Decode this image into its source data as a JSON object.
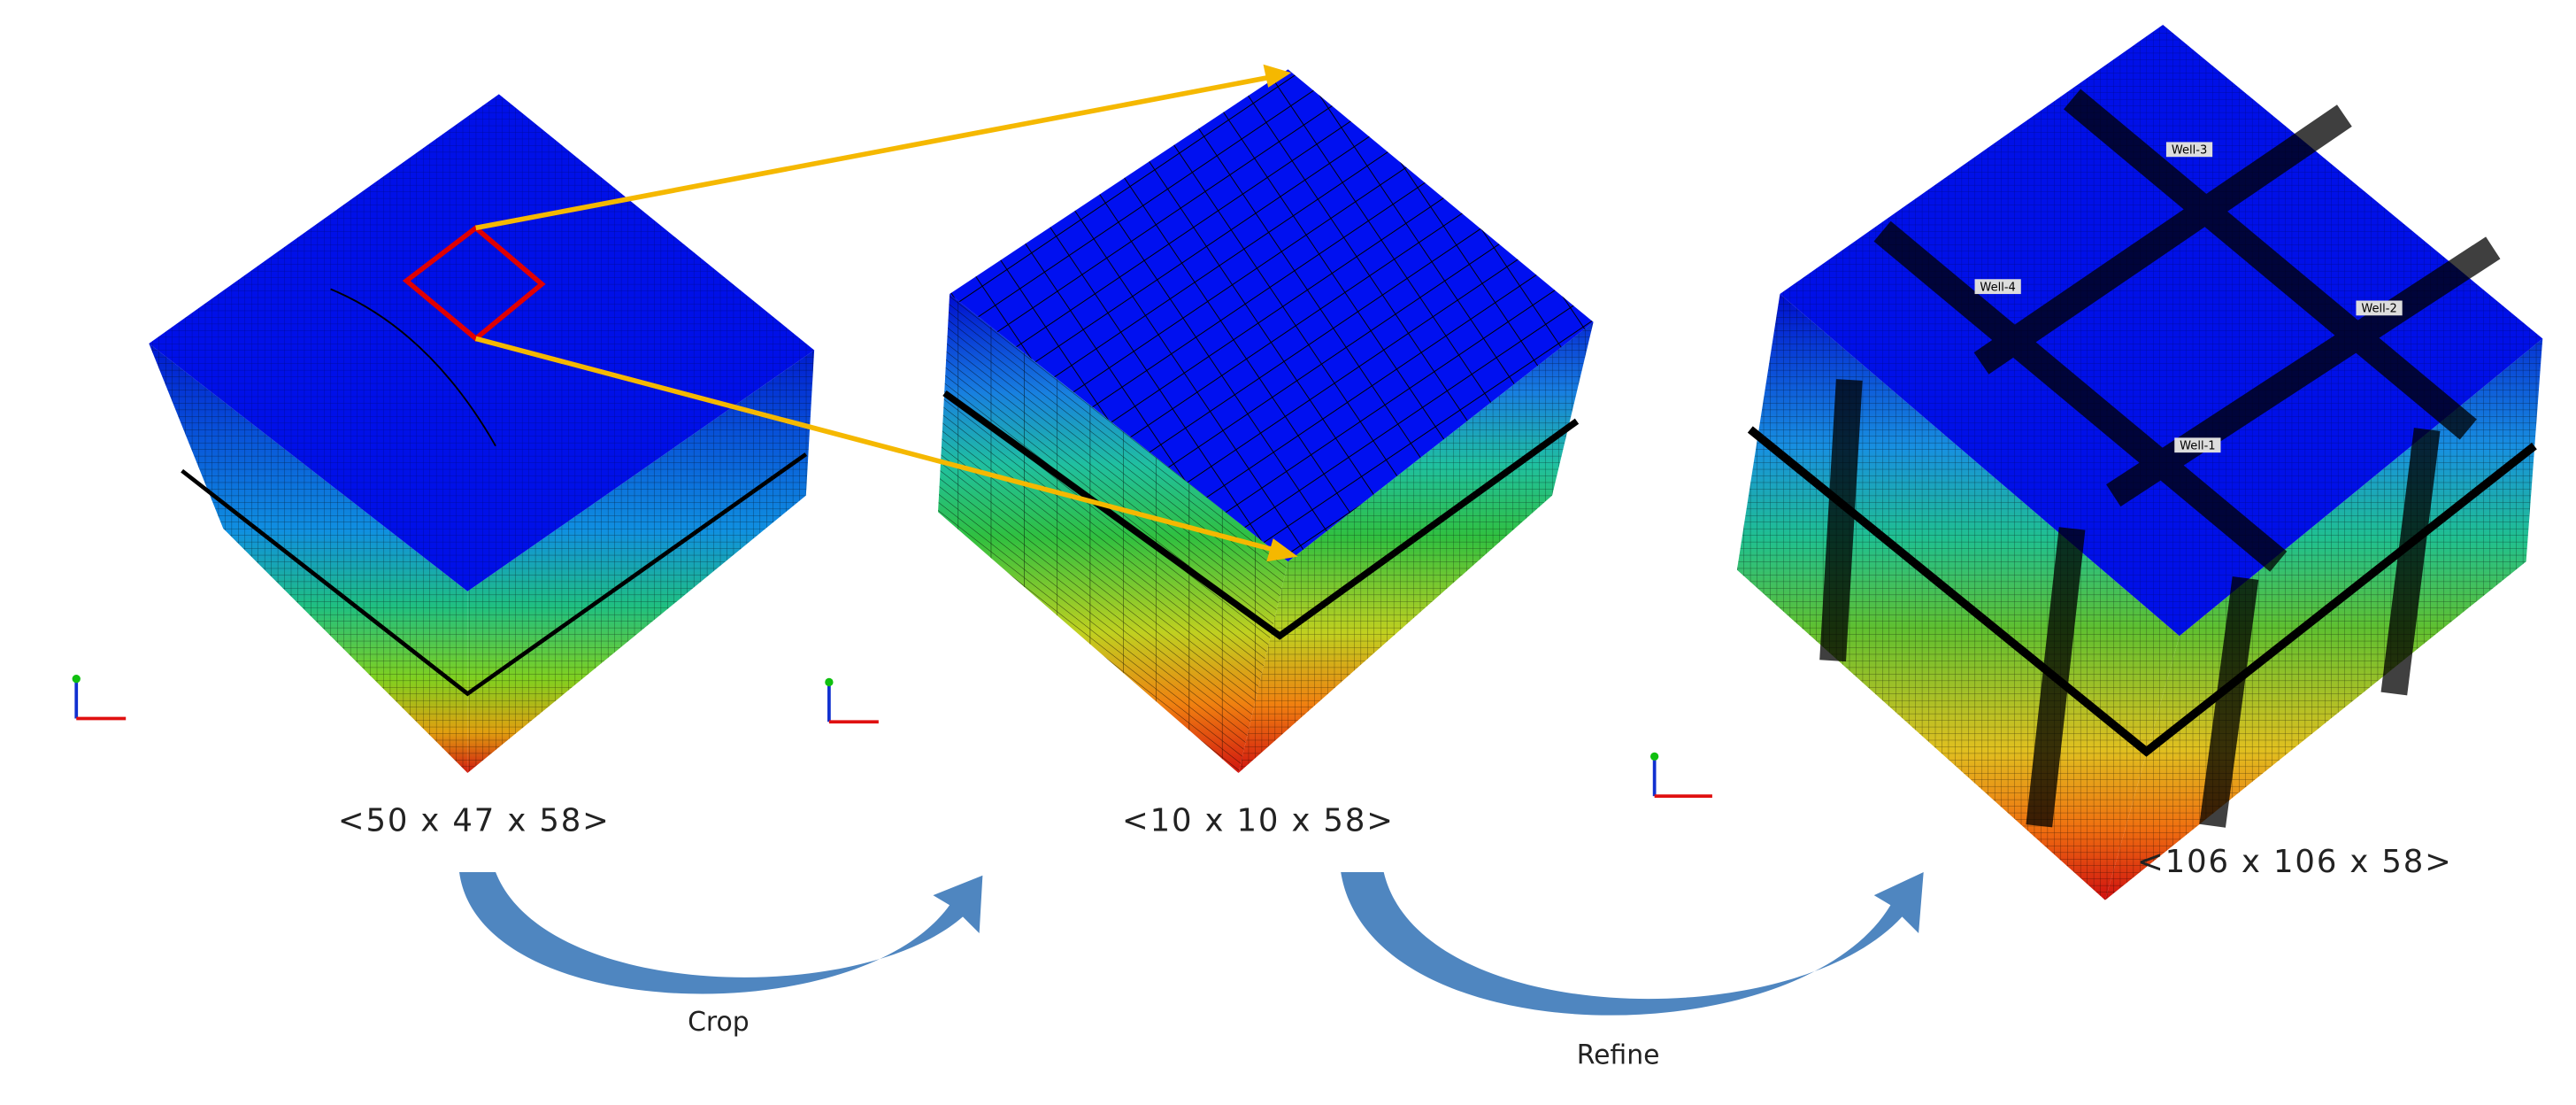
{
  "stages": [
    {
      "label": "<50 x 47 x 58>"
    },
    {
      "label": "<10 x 10 x 58>"
    },
    {
      "label": "<106 x 106 x 58>",
      "wells": [
        "Well-1",
        "Well-2",
        "Well-3",
        "Well-4"
      ]
    }
  ],
  "steps": [
    {
      "label": "Crop"
    },
    {
      "label": "Refine"
    }
  ]
}
